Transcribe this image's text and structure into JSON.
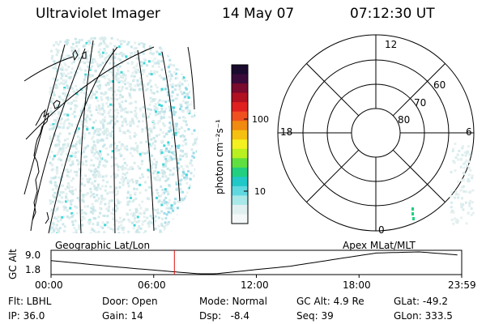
{
  "header": {
    "title": "Ultraviolet Imager",
    "date": "14 May 07",
    "time": "07:12:30 UT"
  },
  "colorbar": {
    "unit_label": "photon cm⁻²s⁻¹",
    "ticks": [
      "100",
      "10"
    ],
    "colors": [
      "#1a0a2e",
      "#3a0a3a",
      "#7a0a2e",
      "#b01020",
      "#e02020",
      "#f05020",
      "#f08a10",
      "#f5c010",
      "#f5f020",
      "#b8f020",
      "#60e040",
      "#20d080",
      "#20c8c8",
      "#60d8e0",
      "#a8e8e8",
      "#e0f0f0",
      "#f4f8f8"
    ]
  },
  "polar": {
    "ring_labels": [
      "80",
      "70",
      "60"
    ],
    "mlt_labels": {
      "top": "12",
      "left": "18",
      "right": "6",
      "bottom": "0"
    }
  },
  "timeline": {
    "left_label": "Geographic Lat/Lon",
    "right_label": "Apex MLat/MLT",
    "ylabel": "GC Alt",
    "y_max": "9.0",
    "y_min": "1.8",
    "ticks": [
      "00:00",
      "06:00",
      "12:00",
      "18:00",
      "23:59"
    ],
    "current_hour": 7.21
  },
  "info": {
    "flt": "Flt: LBHL",
    "ip": "IP: 36.0",
    "door": "Door: Open",
    "gain": "Gain: 14",
    "mode": "Mode: Normal",
    "dsp": "Dsp:   -8.4",
    "gc_alt": "GC Alt: 4.9 Re",
    "seq": "Seq: 39",
    "glat": "GLat: -49.2",
    "glon": "GLon: 333.5"
  }
}
